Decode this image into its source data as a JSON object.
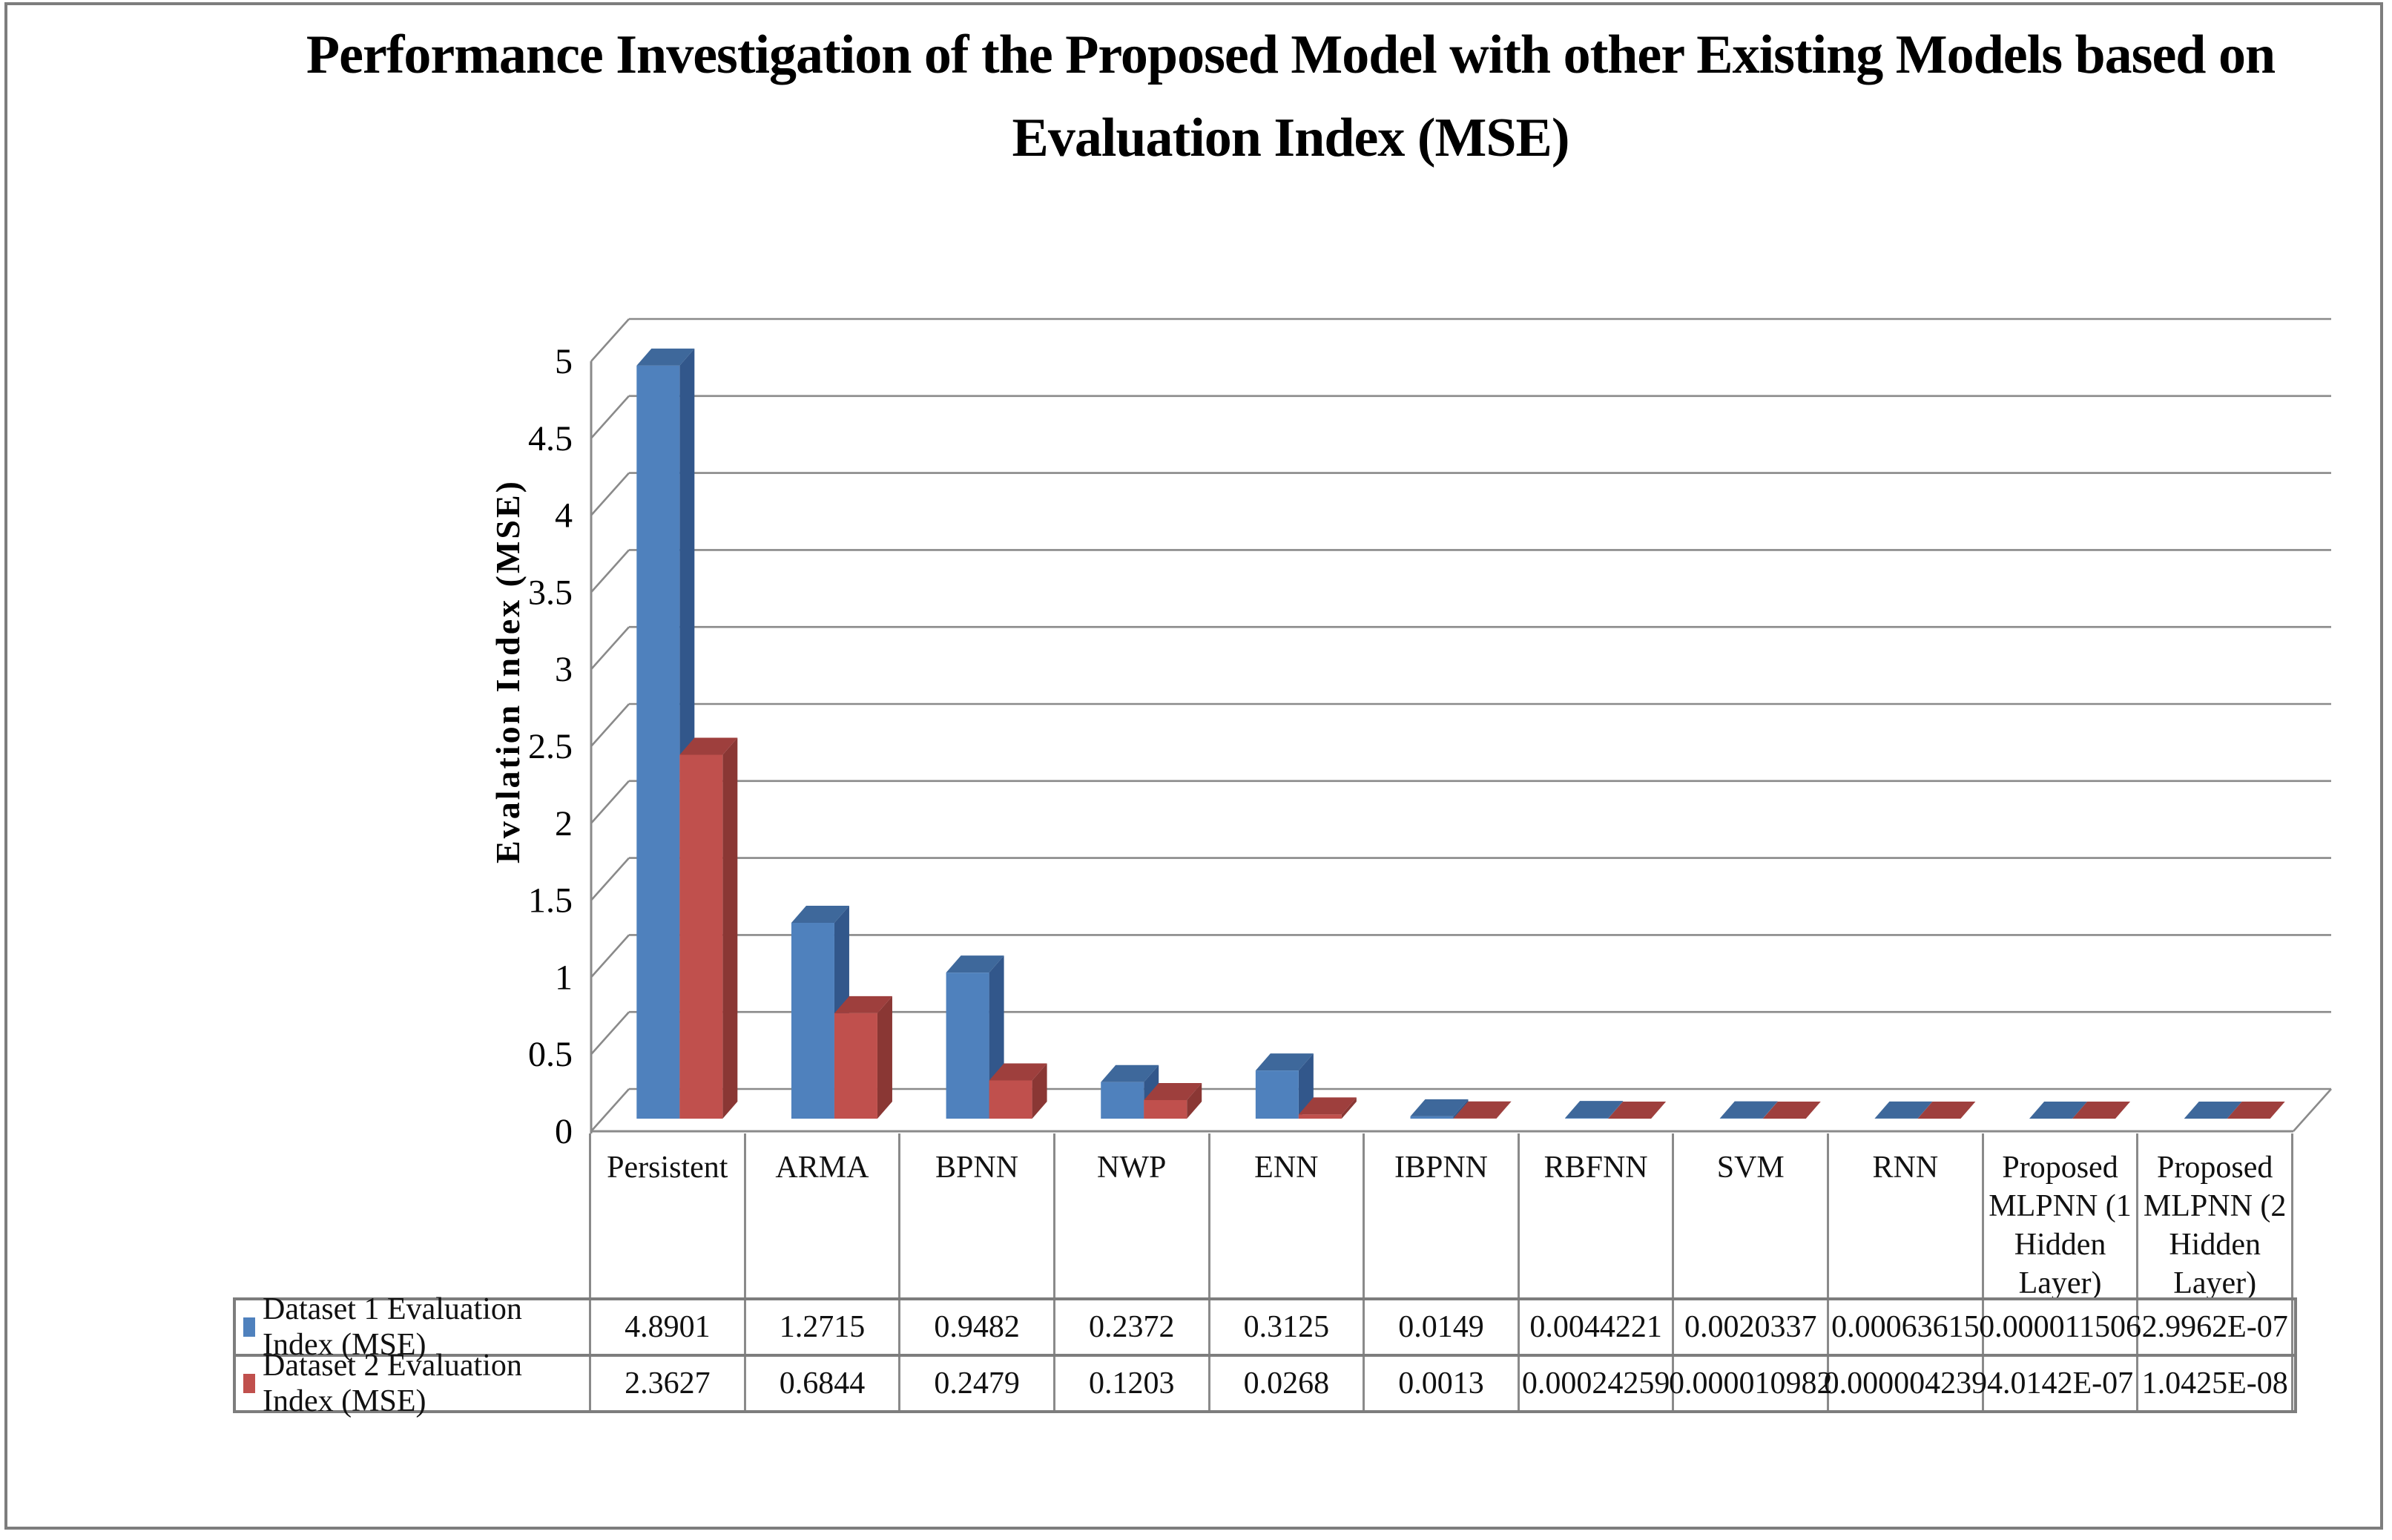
{
  "figure": {
    "title_lines": [
      "Performance Investigation of the Proposed Model with other Existing Models based on",
      "Evaluation Index (MSE)"
    ]
  },
  "chart_data": {
    "type": "bar",
    "style": "3d-clustered-column",
    "title": "Performance Investigation of the Proposed Model with other Existing Models based on Evaluation Index (MSE)",
    "xlabel": "",
    "ylabel": "Evalation Index (MSE)",
    "ylim": [
      0,
      5
    ],
    "ytick_labels": [
      "0",
      "0.5",
      "1",
      "1.5",
      "2",
      "2.5",
      "3",
      "3.5",
      "4",
      "4.5",
      "5"
    ],
    "grid": true,
    "legend_position": "data-table-left",
    "categories": [
      "Persistent",
      "ARMA",
      "BPNN",
      "NWP",
      "ENN",
      "IBPNN",
      "RBFNN",
      "SVM",
      "RNN",
      "Proposed MLPNN (1 Hidden Layer)",
      "Proposed MLPNN (2 Hidden Layer)"
    ],
    "series": [
      {
        "name": "Dataset 1 Evaluation Index (MSE)",
        "color": "#4F81BD",
        "color_top": "#3E689B",
        "color_side": "#32578B",
        "values": [
          4.8901,
          1.2715,
          0.9482,
          0.2372,
          0.3125,
          0.0149,
          0.0044221,
          0.0020337,
          0.00063615,
          1.1506e-05,
          2.9962e-07
        ],
        "value_labels": [
          "4.8901",
          "1.2715",
          "0.9482",
          "0.2372",
          "0.3125",
          "0.0149",
          "0.0044221",
          "0.0020337",
          "0.00063615",
          "0.000011506",
          "2.9962E-07"
        ]
      },
      {
        "name": "Dataset 2 Evaluation Index (MSE)",
        "color": "#C0504D",
        "color_top": "#9E3F3D",
        "color_side": "#8A3734",
        "values": [
          2.3627,
          0.6844,
          0.2479,
          0.1203,
          0.0268,
          0.0013,
          0.00024259,
          1.0982e-05,
          4.239e-06,
          4.0142e-07,
          1.0425e-08
        ],
        "value_labels": [
          "2.3627",
          "0.6844",
          "0.2479",
          "0.1203",
          "0.0268",
          "0.0013",
          "0.00024259",
          "0.000010982",
          "0.000004239",
          "4.0142E-07",
          "1.0425E-08"
        ]
      }
    ]
  },
  "colors": {
    "gridline": "#8a8a8a",
    "axis": "#8a8a8a",
    "table_border": "#7d7d7d",
    "frame_border": "#7d7d7d",
    "background": "#ffffff",
    "text": "#000000"
  }
}
